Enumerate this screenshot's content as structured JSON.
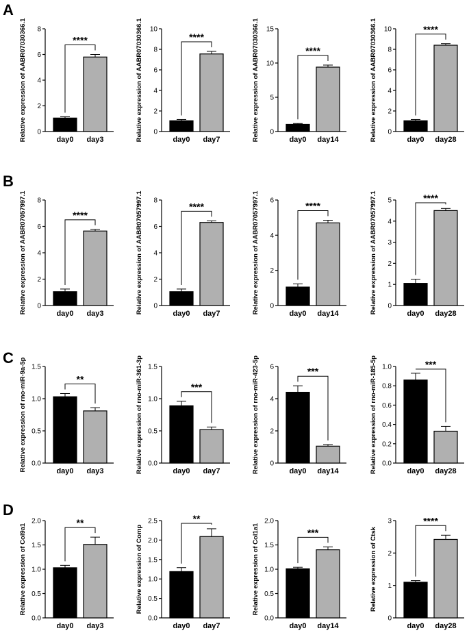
{
  "figure": {
    "panel_letters": [
      "A",
      "B",
      "C",
      "D"
    ],
    "colors": {
      "control_bar": "#000000",
      "treated_bar": "#b0b0b0",
      "bar_edge": "#000000"
    }
  },
  "chart_data": [
    {
      "type": "bar",
      "panel": "A",
      "categories": [
        "day0",
        "day3"
      ],
      "values": [
        1.05,
        5.8
      ],
      "errors": [
        0.1,
        0.2
      ],
      "ylabel": "Relative expression of AABR07030366.1",
      "ylim": [
        0,
        8
      ],
      "yticks": [
        0,
        2,
        4,
        6,
        8
      ],
      "significance": "****"
    },
    {
      "type": "bar",
      "panel": "A",
      "categories": [
        "day0",
        "day7"
      ],
      "values": [
        1.05,
        7.55
      ],
      "errors": [
        0.12,
        0.25
      ],
      "ylabel": "Relative expression of AABR07030366.1",
      "ylim": [
        0,
        10
      ],
      "yticks": [
        0,
        2,
        4,
        6,
        8,
        10
      ],
      "significance": "****"
    },
    {
      "type": "bar",
      "panel": "A",
      "categories": [
        "day0",
        "day14"
      ],
      "values": [
        1.05,
        9.4
      ],
      "errors": [
        0.12,
        0.3
      ],
      "ylabel": "Relative expression of AABR07030366.1",
      "ylim": [
        0,
        15
      ],
      "yticks": [
        0,
        5,
        10,
        15
      ],
      "significance": "****"
    },
    {
      "type": "bar",
      "panel": "A",
      "categories": [
        "day0",
        "day28"
      ],
      "values": [
        1.05,
        8.4
      ],
      "errors": [
        0.12,
        0.15
      ],
      "ylabel": "Relative expression of AABR07030366.1",
      "ylim": [
        0,
        10
      ],
      "yticks": [
        0,
        2,
        4,
        6,
        8,
        10
      ],
      "significance": "****"
    },
    {
      "type": "bar",
      "panel": "B",
      "categories": [
        "day0",
        "day3"
      ],
      "values": [
        1.05,
        5.65
      ],
      "errors": [
        0.2,
        0.12
      ],
      "ylabel": "Relative expression of AABR07057997.1",
      "ylim": [
        0,
        8
      ],
      "yticks": [
        0,
        2,
        4,
        6,
        8
      ],
      "significance": "****"
    },
    {
      "type": "bar",
      "panel": "B",
      "categories": [
        "day0",
        "day7"
      ],
      "values": [
        1.05,
        6.3
      ],
      "errors": [
        0.2,
        0.12
      ],
      "ylabel": "Relative expression of AABR07057997.1",
      "ylim": [
        0,
        8
      ],
      "yticks": [
        0,
        2,
        4,
        6,
        8
      ],
      "significance": "****"
    },
    {
      "type": "bar",
      "panel": "B",
      "categories": [
        "day0",
        "day14"
      ],
      "values": [
        1.05,
        4.7
      ],
      "errors": [
        0.18,
        0.15
      ],
      "ylabel": "Relative expression of AABR07057997.1",
      "ylim": [
        0,
        6
      ],
      "yticks": [
        0,
        2,
        4,
        6
      ],
      "significance": "****"
    },
    {
      "type": "bar",
      "panel": "B",
      "categories": [
        "day0",
        "day28"
      ],
      "values": [
        1.05,
        4.5
      ],
      "errors": [
        0.2,
        0.1
      ],
      "ylabel": "Relative expression of AABR07057997.1",
      "ylim": [
        0,
        5
      ],
      "yticks": [
        0,
        1,
        2,
        3,
        4,
        5
      ],
      "significance": "****"
    },
    {
      "type": "bar",
      "panel": "C",
      "categories": [
        "day0",
        "day3"
      ],
      "values": [
        1.03,
        0.81
      ],
      "errors": [
        0.05,
        0.05
      ],
      "ylabel": "Relative expression of rno-miR-9a-5p",
      "ylim": [
        0,
        1.5
      ],
      "yticks": [
        "0.0",
        "0.5",
        "1.0",
        "1.5"
      ],
      "significance": "**"
    },
    {
      "type": "bar",
      "panel": "C",
      "categories": [
        "day0",
        "day7"
      ],
      "values": [
        0.89,
        0.52
      ],
      "errors": [
        0.07,
        0.04
      ],
      "ylabel": "Relative expression of rno-miR-361-3p",
      "ylim": [
        0,
        1.5
      ],
      "yticks": [
        "0.0",
        "0.5",
        "1.0",
        "1.5"
      ],
      "significance": "***"
    },
    {
      "type": "bar",
      "panel": "C",
      "categories": [
        "day0",
        "day14"
      ],
      "values": [
        4.4,
        1.05
      ],
      "errors": [
        0.4,
        0.1
      ],
      "ylabel": "Relative expression of rno-miR-423-5p",
      "ylim": [
        0,
        6
      ],
      "yticks": [
        "0",
        "2",
        "4",
        "6"
      ],
      "significance": "***"
    },
    {
      "type": "bar",
      "panel": "C",
      "categories": [
        "day0",
        "day28"
      ],
      "values": [
        0.86,
        0.33
      ],
      "errors": [
        0.07,
        0.05
      ],
      "ylabel": "Relative expression of rno-miR-185-5p",
      "ylim": [
        0,
        1.0
      ],
      "yticks": [
        "0.0",
        "0.2",
        "0.4",
        "0.6",
        "0.8",
        "1.0"
      ],
      "significance": "***"
    },
    {
      "type": "bar",
      "panel": "D",
      "categories": [
        "day0",
        "day3"
      ],
      "values": [
        1.03,
        1.51
      ],
      "errors": [
        0.05,
        0.15
      ],
      "ylabel": "Relative expression of Col9a1",
      "ylim": [
        0,
        2.0
      ],
      "yticks": [
        "0.0",
        "0.5",
        "1.0",
        "1.5",
        "2.0"
      ],
      "significance": "**"
    },
    {
      "type": "bar",
      "panel": "D",
      "categories": [
        "day0",
        "day7"
      ],
      "values": [
        1.19,
        2.09
      ],
      "errors": [
        0.1,
        0.2
      ],
      "ylabel": "Relative expression of Comp",
      "ylim": [
        0,
        2.5
      ],
      "yticks": [
        "0.0",
        "0.5",
        "1.0",
        "1.5",
        "2.0",
        "2.5"
      ],
      "significance": "**"
    },
    {
      "type": "bar",
      "panel": "D",
      "categories": [
        "day0",
        "day14"
      ],
      "values": [
        1.01,
        1.4
      ],
      "errors": [
        0.03,
        0.06
      ],
      "ylabel": "Relative expression of Col1a1",
      "ylim": [
        0,
        2.0
      ],
      "yticks": [
        "0.0",
        "0.5",
        "1.0",
        "1.5",
        "2.0"
      ],
      "significance": "***"
    },
    {
      "type": "bar",
      "panel": "D",
      "categories": [
        "day0",
        "day28"
      ],
      "values": [
        1.1,
        2.42
      ],
      "errors": [
        0.05,
        0.13
      ],
      "ylabel": "Relative expression of Ctsk",
      "ylim": [
        0,
        3
      ],
      "yticks": [
        "0",
        "1",
        "2",
        "3"
      ],
      "significance": "****"
    }
  ]
}
